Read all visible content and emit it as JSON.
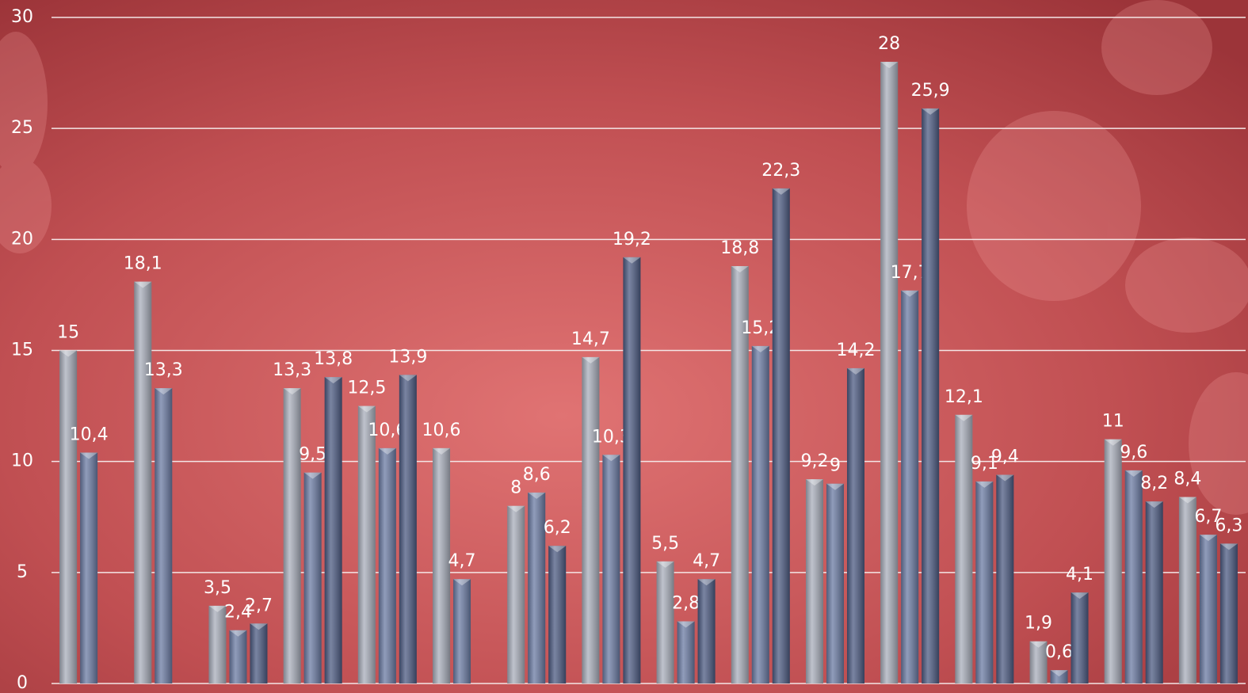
{
  "chart_data": {
    "type": "bar",
    "categories": [
      null,
      null,
      null,
      null,
      null,
      null,
      null,
      null,
      null,
      null,
      null,
      null,
      null,
      null,
      null,
      null
    ],
    "series": [
      {
        "color": "#a9aebb",
        "values": [
          15,
          18.1,
          3.5,
          13.3,
          12.5,
          10.6,
          8,
          14.7,
          5.5,
          18.8,
          9.2,
          28,
          12.1,
          1.9,
          11,
          8.4
        ],
        "value_labels": [
          "15",
          "18,1",
          "3,5",
          "13,3",
          "12,5",
          "10,6",
          "8",
          "14,7",
          "5,5",
          "18,8",
          "9,2",
          "28",
          "12,1",
          "1,9",
          "11",
          "8,4"
        ]
      },
      {
        "color": "#6b7ba3",
        "values": [
          10.4,
          13.3,
          2.4,
          9.5,
          10.6,
          4.7,
          8.6,
          10.3,
          2.8,
          15.2,
          9,
          17.7,
          9.1,
          0.6,
          9.6,
          6.7
        ],
        "value_labels": [
          "10,4",
          "13,3",
          "2,4",
          "9,5",
          "10,6",
          "4,7",
          "8,6",
          "10,3",
          "2,8",
          "15,2",
          "9",
          "17,7",
          "9,1",
          "0,6",
          "9,6",
          "6,7"
        ]
      },
      {
        "color": "#4d5b82",
        "values": [
          null,
          null,
          2.7,
          13.8,
          13.9,
          null,
          6.2,
          19.2,
          4.7,
          22.3,
          14.2,
          25.9,
          9.4,
          4.1,
          8.2,
          6.3
        ],
        "value_labels": [
          null,
          null,
          "2,7",
          "13,8",
          "13,9",
          null,
          "6,2",
          "19,2",
          "4,7",
          "22,3",
          "14,2",
          "25,9",
          "9,4",
          "4,1",
          "8,2",
          "6,3"
        ]
      }
    ],
    "ylim": [
      0,
      30
    ],
    "yticks": [
      0,
      5,
      10,
      15,
      20,
      25,
      30
    ],
    "grid": true
  }
}
